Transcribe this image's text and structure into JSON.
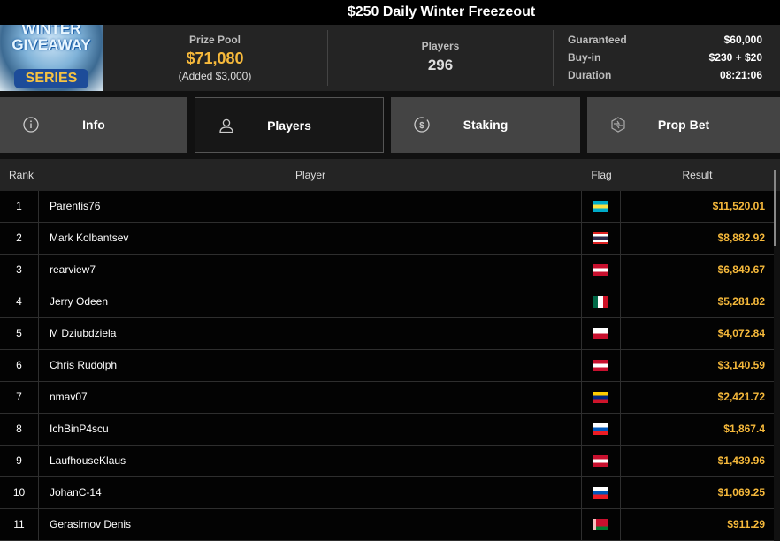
{
  "title": "$250 Daily Winter Freezeout",
  "banner": {
    "line1": "WINTER",
    "line2": "GIVEAWAY",
    "line3": "SERIES"
  },
  "prize_pool": {
    "label": "Prize Pool",
    "value": "$71,080",
    "added": "(Added $3,000)"
  },
  "players": {
    "label": "Players",
    "value": "296"
  },
  "details": [
    {
      "k": "Guaranteed",
      "v": "$60,000"
    },
    {
      "k": "Buy-in",
      "v": "$230 + $20"
    },
    {
      "k": "Duration",
      "v": "08:21:06"
    }
  ],
  "tabs": [
    {
      "label": "Info",
      "icon": "info-icon"
    },
    {
      "label": "Players",
      "icon": "user-icon",
      "active": true
    },
    {
      "label": "Staking",
      "icon": "dollar-coin-icon"
    },
    {
      "label": "Prop Bet",
      "icon": "hexagon-bolt-icon"
    }
  ],
  "colors": {
    "accent": "#f6b93b",
    "active_tab": "#171717",
    "tab": "#444444"
  },
  "table": {
    "headers": [
      "Rank",
      "Player",
      "Flag",
      "Result"
    ],
    "rows": [
      {
        "rank": "1",
        "player": "Parentis76",
        "flag": "bahamas",
        "result": "$11,520.01"
      },
      {
        "rank": "2",
        "player": "Mark Kolbantsev",
        "flag": "thailand",
        "result": "$8,882.92"
      },
      {
        "rank": "3",
        "player": "rearview7",
        "flag": "austria",
        "result": "$6,849.67"
      },
      {
        "rank": "4",
        "player": "Jerry Odeen",
        "flag": "mexico",
        "result": "$5,281.82"
      },
      {
        "rank": "5",
        "player": "M Dziubdziela",
        "flag": "poland",
        "result": "$4,072.84"
      },
      {
        "rank": "6",
        "player": "Chris Rudolph",
        "flag": "austria",
        "result": "$3,140.59"
      },
      {
        "rank": "7",
        "player": "nmav07",
        "flag": "venezuela",
        "result": "$2,421.72"
      },
      {
        "rank": "8",
        "player": "IchBinP4scu",
        "flag": "slovenia",
        "result": "$1,867.4"
      },
      {
        "rank": "9",
        "player": "LaufhouseKlaus",
        "flag": "austria",
        "result": "$1,439.96"
      },
      {
        "rank": "10",
        "player": "JohanC-14",
        "flag": "slovenia",
        "result": "$1,069.25"
      },
      {
        "rank": "11",
        "player": "Gerasimov Denis",
        "flag": "belarus",
        "result": "$911.29"
      }
    ]
  }
}
